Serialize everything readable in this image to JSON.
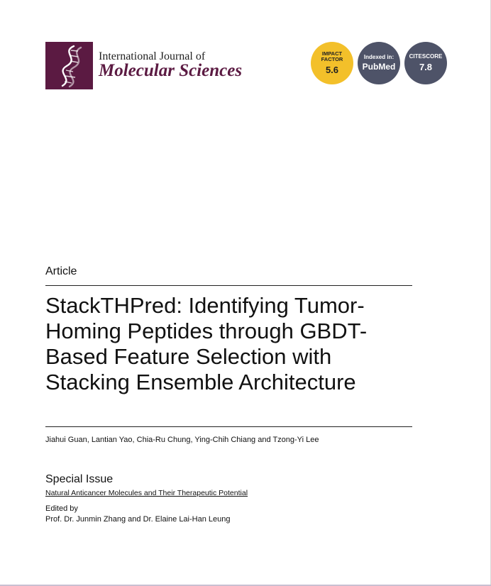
{
  "journal": {
    "name_line1": "International Journal of",
    "name_line2": "Molecular Sciences",
    "brand_color": "#5b1a42"
  },
  "badges": {
    "impact_factor": {
      "label_line1": "IMPACT",
      "label_line2": "FACTOR",
      "value": "5.6",
      "color": "#f3c02a"
    },
    "indexed": {
      "label": "Indexed in:",
      "value": "PubMed",
      "color": "#4e5368"
    },
    "citescore": {
      "label": "CITESCORE",
      "value": "7.8",
      "color": "#4e5368"
    }
  },
  "article": {
    "type": "Article",
    "title_lines": [
      "StackTHPred: Identifying Tumor-",
      "Homing Peptides through GBDT-",
      "Based Feature Selection with",
      "Stacking Ensemble Architecture"
    ],
    "authors": "Jiahui Guan, Lantian Yao, Chia-Ru Chung, Ying-Chih Chiang and Tzong-Yi Lee"
  },
  "special_issue": {
    "label": "Special Issue",
    "link_text": "Natural Anticancer Molecules and Their Therapeutic Potential",
    "edited_by_label": "Edited by",
    "editors": "Prof. Dr. Junmin Zhang and Dr. Elaine Lai-Han Leung"
  }
}
